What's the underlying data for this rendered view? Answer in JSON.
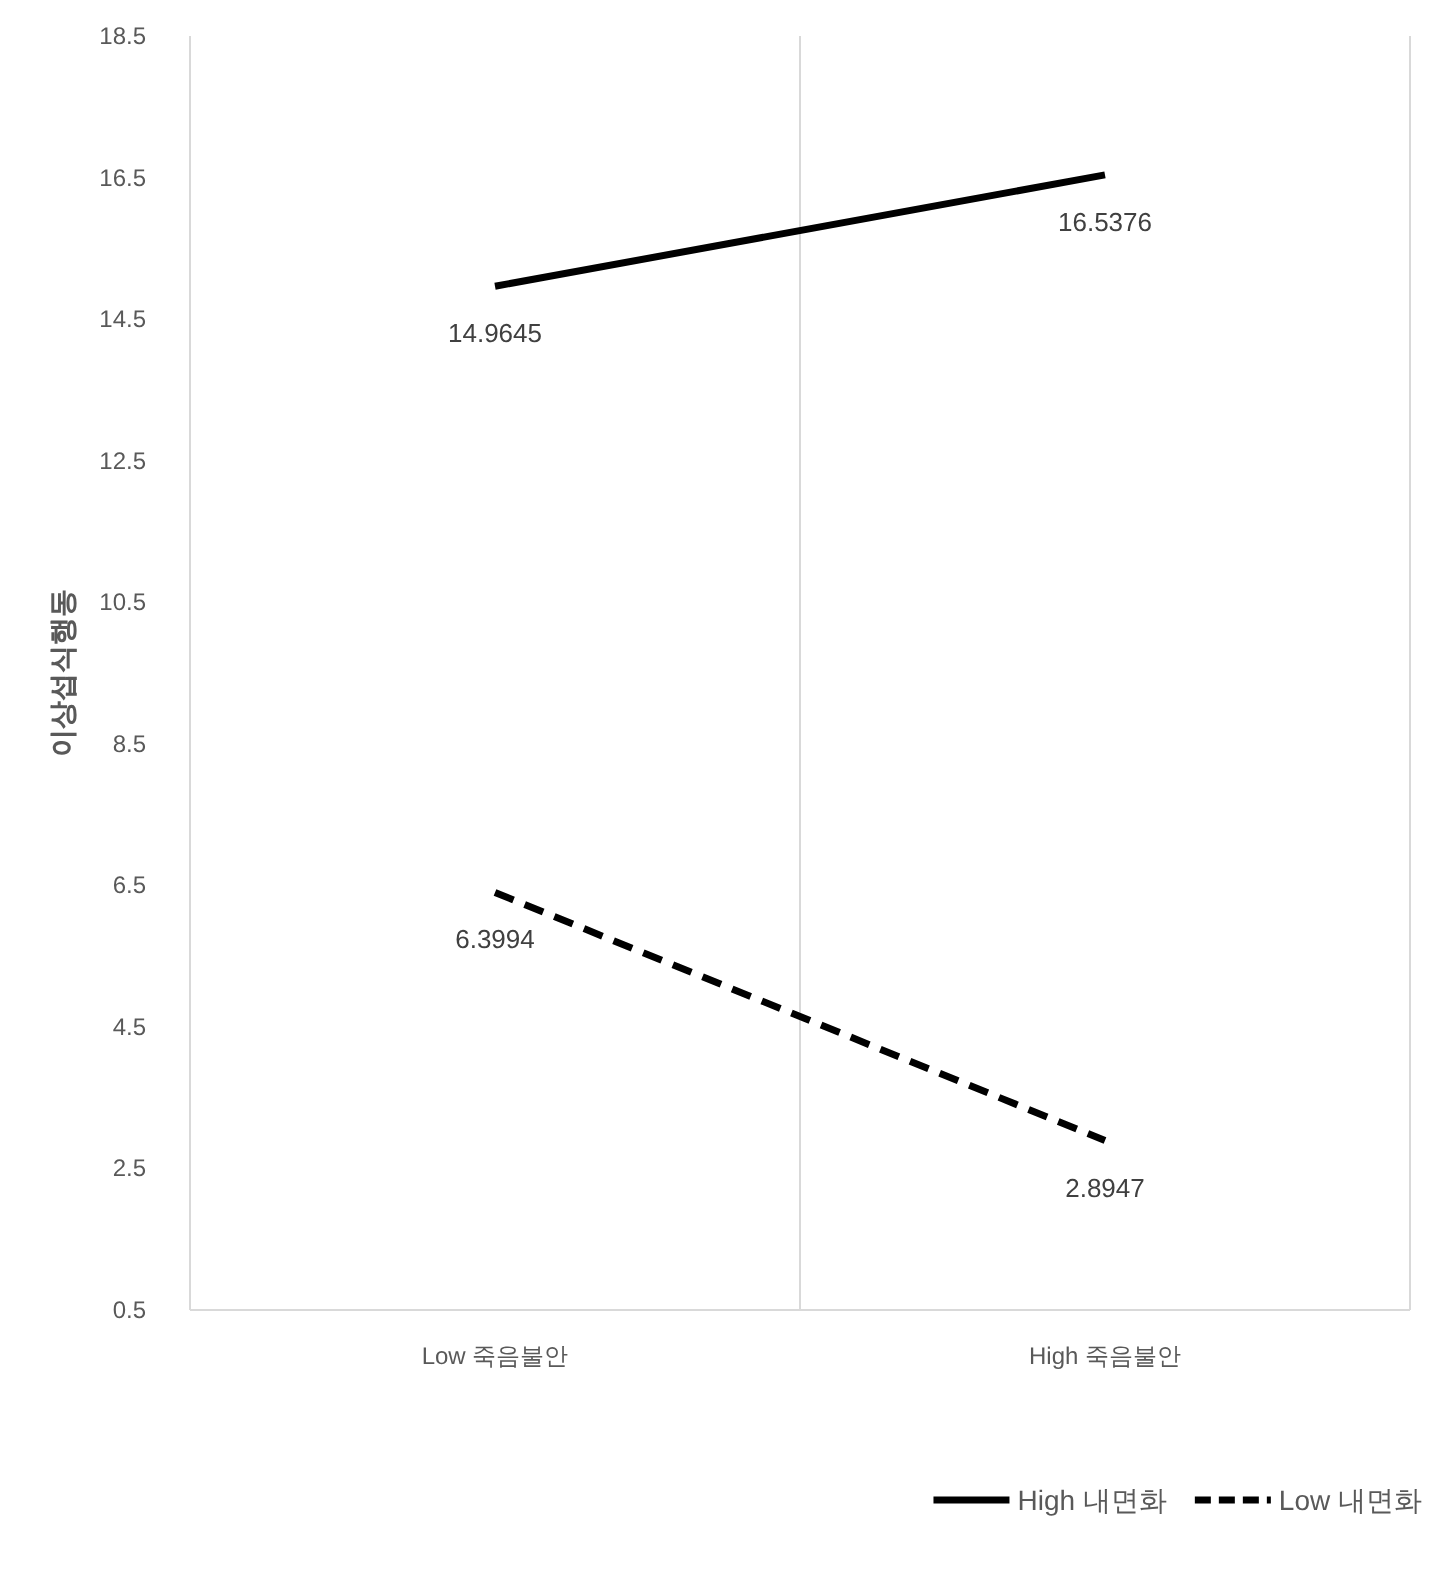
{
  "chart_data": {
    "type": "line",
    "ylabel": "이상섭식행동",
    "categories": [
      "Low 죽음불안",
      "High 죽음불안"
    ],
    "series": [
      {
        "name": "High 내면화",
        "color": "#000000",
        "line_style": "solid",
        "values": [
          14.9645,
          16.5376
        ]
      },
      {
        "name": "Low 내면화",
        "color": "#000000",
        "line_style": "dashed",
        "values": [
          6.3994,
          2.8947
        ]
      }
    ],
    "ylim": [
      0.5,
      18.5
    ],
    "yticks": [
      0.5,
      2.5,
      4.5,
      6.5,
      8.5,
      10.5,
      12.5,
      14.5,
      16.5,
      18.5
    ],
    "grid": "x",
    "legend": "bottom right",
    "data_labels": true,
    "marker": "none"
  }
}
